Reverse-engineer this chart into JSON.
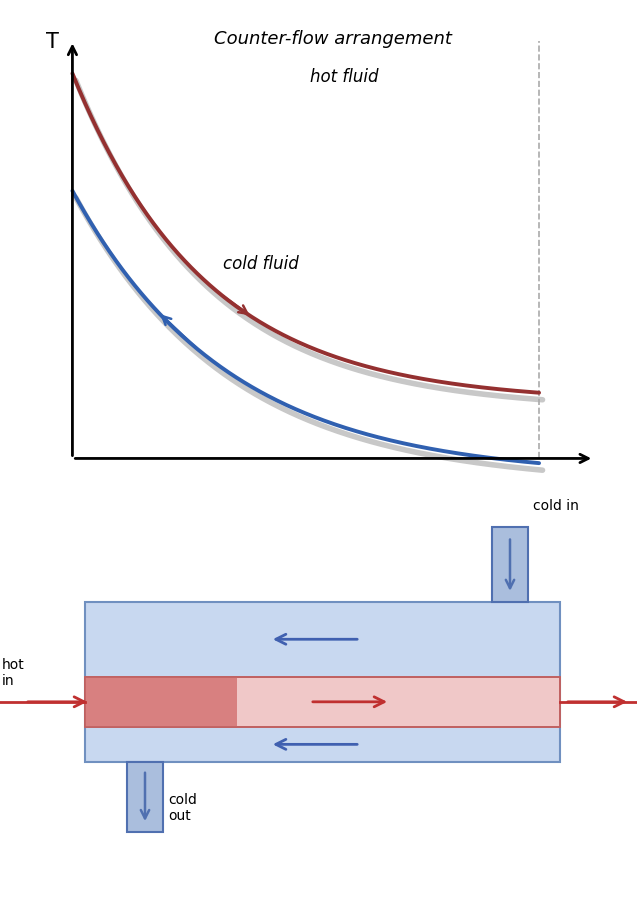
{
  "title": "Counter-flow arrangement",
  "title_fontsize": 13,
  "bg_color": "#ffffff",
  "hot_curve_color": "#943030",
  "cold_curve_color": "#3060b0",
  "shadow_color": "#c8c8c8",
  "dashed_line_color": "#aaaaaa",
  "hot_label": "hot fluid",
  "cold_label": "cold fluid",
  "exchanger_outer_edge": "#7090c0",
  "exchanger_outer_fill": "#c8d8f0",
  "exchanger_inner_edge": "#c06060",
  "exchanger_inner_fill_dark": "#d88080",
  "exchanger_inner_fill_light": "#f0c8c8",
  "hot_arrow_color": "#c03030",
  "cold_arrow_color": "#4060b0",
  "cold_duct_edge": "#5070b0",
  "cold_duct_fill": "#aabedd"
}
